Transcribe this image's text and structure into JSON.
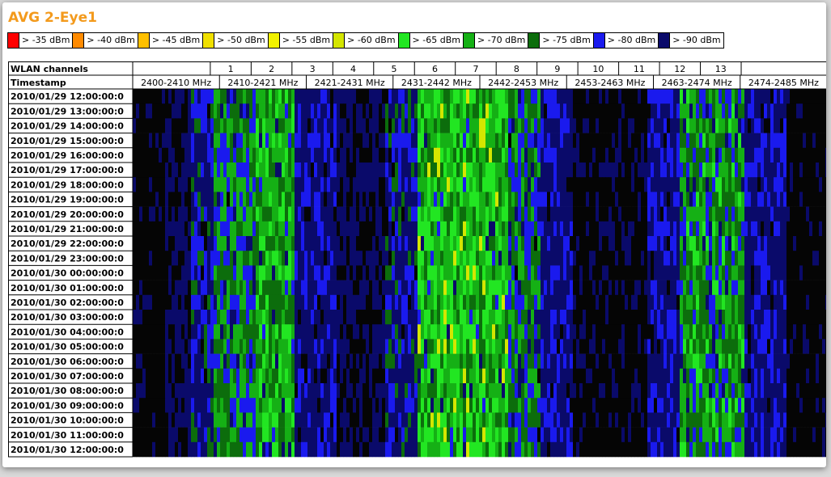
{
  "title": "AVG 2-Eye1",
  "legend": [
    {
      "label": "> -35 dBm",
      "color": "#ff0000"
    },
    {
      "label": "> -40 dBm",
      "color": "#ff8a00"
    },
    {
      "label": "> -45 dBm",
      "color": "#ffc000"
    },
    {
      "label": "> -50 dBm",
      "color": "#f0e000"
    },
    {
      "label": "> -55 dBm",
      "color": "#f2f200"
    },
    {
      "label": "> -60 dBm",
      "color": "#d4e600"
    },
    {
      "label": "> -65 dBm",
      "color": "#22e622"
    },
    {
      "label": "> -70 dBm",
      "color": "#15b015"
    },
    {
      "label": "> -75 dBm",
      "color": "#0c6d0c"
    },
    {
      "label": "> -80 dBm",
      "color": "#1a1aee"
    },
    {
      "label": "> -90 dBm",
      "color": "#0a0a6a"
    }
  ],
  "chart_data": {
    "type": "heatmap",
    "title": "AVG 2-Eye1",
    "row_header_label": "Timestamp",
    "channel_header_label": "WLAN channels",
    "wlan_channels": [
      "1",
      "2",
      "3",
      "4",
      "5",
      "6",
      "7",
      "8",
      "9",
      "10",
      "11",
      "12",
      "13"
    ],
    "frequency_bands": [
      "2400-2410 MHz",
      "2410-2421 MHz",
      "2421-2431 MHz",
      "2431-2442 MHz",
      "2442-2453 MHz",
      "2453-2463 MHz",
      "2463-2474 MHz",
      "2474-2485 MHz"
    ],
    "timestamps": [
      "2010/01/29 12:00:00:0",
      "2010/01/29 13:00:00:0",
      "2010/01/29 14:00:00:0",
      "2010/01/29 15:00:00:0",
      "2010/01/29 16:00:00:0",
      "2010/01/29 17:00:00:0",
      "2010/01/29 18:00:00:0",
      "2010/01/29 19:00:00:0",
      "2010/01/29 20:00:00:0",
      "2010/01/29 21:00:00:0",
      "2010/01/29 22:00:00:0",
      "2010/01/29 23:00:00:0",
      "2010/01/30 00:00:00:0",
      "2010/01/30 01:00:00:0",
      "2010/01/30 02:00:00:0",
      "2010/01/30 03:00:00:0",
      "2010/01/30 04:00:00:0",
      "2010/01/30 05:00:00:0",
      "2010/01/30 06:00:00:0",
      "2010/01/30 07:00:00:0",
      "2010/01/30 08:00:00:0",
      "2010/01/30 09:00:00:0",
      "2010/01/30 10:00:00:0",
      "2010/01/30 11:00:00:0",
      "2010/01/30 12:00:00:0"
    ],
    "value_unit": "dBm",
    "frequency_range_mhz": [
      2400,
      2485
    ],
    "approx_band_levels_dbm": [
      {
        "from_mhz": 2400,
        "to_mhz": 2404,
        "level_dbm": -95
      },
      {
        "from_mhz": 2404,
        "to_mhz": 2407,
        "level_dbm": -88
      },
      {
        "from_mhz": 2407,
        "to_mhz": 2410,
        "level_dbm": -80
      },
      {
        "from_mhz": 2410,
        "to_mhz": 2415,
        "level_dbm": -72
      },
      {
        "from_mhz": 2415,
        "to_mhz": 2420,
        "level_dbm": -68
      },
      {
        "from_mhz": 2420,
        "to_mhz": 2425,
        "level_dbm": -82
      },
      {
        "from_mhz": 2425,
        "to_mhz": 2431,
        "level_dbm": -88
      },
      {
        "from_mhz": 2431,
        "to_mhz": 2435,
        "level_dbm": -80
      },
      {
        "from_mhz": 2435,
        "to_mhz": 2446,
        "level_dbm": -66
      },
      {
        "from_mhz": 2446,
        "to_mhz": 2450,
        "level_dbm": -74
      },
      {
        "from_mhz": 2450,
        "to_mhz": 2454,
        "level_dbm": -82
      },
      {
        "from_mhz": 2454,
        "to_mhz": 2463,
        "level_dbm": -93
      },
      {
        "from_mhz": 2463,
        "to_mhz": 2467,
        "level_dbm": -82
      },
      {
        "from_mhz": 2467,
        "to_mhz": 2475,
        "level_dbm": -70
      },
      {
        "from_mhz": 2475,
        "to_mhz": 2480,
        "level_dbm": -82
      },
      {
        "from_mhz": 2480,
        "to_mhz": 2485,
        "level_dbm": -95
      }
    ]
  }
}
